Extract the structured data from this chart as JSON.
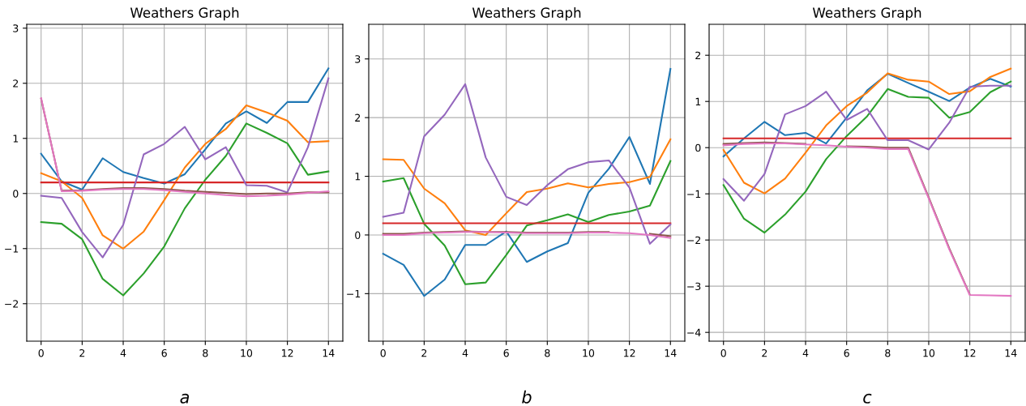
{
  "chart_data": [
    {
      "type": "line",
      "title": "Weathers Graph",
      "xlabel": "a",
      "x": [
        0,
        1,
        2,
        3,
        4,
        5,
        6,
        7,
        8,
        9,
        10,
        11,
        12,
        13,
        14
      ],
      "xlim": [
        -0.7,
        14.7
      ],
      "xticks": [
        0,
        2,
        4,
        6,
        8,
        10,
        12,
        14
      ],
      "ylim": [
        -2.68,
        3.07
      ],
      "yticks": [
        {
          "value": -2,
          "label": "−2"
        },
        {
          "value": -1,
          "label": "−1"
        },
        0,
        1,
        2,
        3
      ],
      "grid": true,
      "series": [
        {
          "color": "#1f77b4",
          "values": [
            0.72,
            0.22,
            0.07,
            0.64,
            0.39,
            0.28,
            0.18,
            0.35,
            0.8,
            1.27,
            1.49,
            1.28,
            1.66,
            1.66,
            2.27
          ]
        },
        {
          "color": "#ff7f0e",
          "values": [
            0.37,
            0.22,
            -0.08,
            -0.76,
            -1.0,
            -0.69,
            -0.12,
            0.47,
            0.9,
            1.17,
            1.6,
            1.47,
            1.32,
            0.93,
            0.95
          ]
        },
        {
          "color": "#2ca02c",
          "values": [
            -0.52,
            -0.55,
            -0.83,
            -1.55,
            -1.85,
            -1.45,
            -0.96,
            -0.27,
            0.25,
            0.68,
            1.27,
            1.1,
            0.91,
            0.34,
            0.4
          ]
        },
        {
          "color": "#d62728",
          "values": [
            0.2,
            0.2,
            0.2,
            0.2,
            0.2,
            0.2,
            0.2,
            0.2,
            0.2,
            0.2,
            0.2,
            0.2,
            0.2,
            0.2,
            0.2
          ]
        },
        {
          "color": "#9467bd",
          "values": [
            -0.04,
            -0.08,
            -0.7,
            -1.16,
            -0.57,
            0.71,
            0.9,
            1.21,
            0.62,
            0.84,
            0.15,
            0.14,
            0.02,
            0.84,
            2.09
          ]
        },
        {
          "color": "#8c564b",
          "values": [
            1.72,
            0.05,
            0.06,
            0.08,
            0.1,
            0.1,
            0.08,
            0.05,
            0.03,
            0.01,
            -0.01,
            0.0,
            0.0,
            0.02,
            0.02
          ]
        },
        {
          "color": "#e377c2",
          "values": [
            1.73,
            0.04,
            0.05,
            0.07,
            0.08,
            0.08,
            0.06,
            0.03,
            0.0,
            -0.03,
            -0.05,
            -0.04,
            -0.02,
            0.01,
            0.04
          ]
        }
      ]
    },
    {
      "type": "line",
      "title": "Weathers Graph",
      "xlabel": "b",
      "x": [
        0,
        1,
        2,
        3,
        4,
        5,
        6,
        7,
        8,
        9,
        10,
        11,
        12,
        13,
        14
      ],
      "xlim": [
        -0.7,
        14.7
      ],
      "xticks": [
        0,
        2,
        4,
        6,
        8,
        10,
        12,
        14
      ],
      "ylim": [
        -1.81,
        3.59
      ],
      "yticks": [
        {
          "value": -1,
          "label": "−1"
        },
        0,
        1,
        2,
        3
      ],
      "grid": true,
      "series": [
        {
          "color": "#1f77b4",
          "values": [
            -0.32,
            -0.51,
            -1.04,
            -0.76,
            -0.17,
            -0.17,
            0.06,
            -0.46,
            -0.28,
            -0.14,
            0.72,
            1.13,
            1.67,
            0.87,
            2.83
          ]
        },
        {
          "color": "#ff7f0e",
          "values": [
            1.29,
            1.28,
            0.79,
            0.54,
            0.08,
            0.0,
            0.37,
            0.73,
            0.79,
            0.88,
            0.81,
            0.87,
            0.9,
            0.99,
            1.63
          ]
        },
        {
          "color": "#2ca02c",
          "values": [
            0.91,
            0.97,
            0.19,
            -0.18,
            -0.84,
            -0.81,
            -0.34,
            0.16,
            0.25,
            0.35,
            0.22,
            0.34,
            0.4,
            0.5,
            1.26
          ]
        },
        {
          "color": "#d62728",
          "values": [
            0.2,
            0.2,
            0.2,
            0.2,
            0.2,
            0.2,
            0.2,
            0.2,
            0.2,
            0.2,
            0.2,
            0.2,
            0.2,
            0.2,
            0.2
          ]
        },
        {
          "color": "#9467bd",
          "values": [
            0.31,
            0.38,
            1.68,
            2.05,
            2.57,
            1.32,
            0.65,
            0.51,
            0.85,
            1.12,
            1.24,
            1.27,
            0.81,
            -0.15,
            0.18
          ]
        },
        {
          "color": "#8c564b",
          "values": [
            0.02,
            0.02,
            0.04,
            0.05,
            0.06,
            0.05,
            0.05,
            0.04,
            0.04,
            0.04,
            0.05,
            0.05,
            null,
            0.02,
            -0.02
          ]
        },
        {
          "color": "#e377c2",
          "values": [
            0.0,
            0.0,
            0.03,
            0.04,
            0.05,
            0.05,
            0.04,
            0.03,
            0.03,
            0.03,
            0.04,
            0.04,
            0.03,
            0.0,
            -0.05
          ]
        }
      ]
    },
    {
      "type": "line",
      "title": "Weathers Graph",
      "xlabel": "c",
      "x": [
        0,
        1,
        2,
        3,
        4,
        5,
        6,
        7,
        8,
        9,
        10,
        11,
        12,
        13,
        14
      ],
      "xlim": [
        -0.7,
        14.7
      ],
      "xticks": [
        0,
        2,
        4,
        6,
        8,
        10,
        12,
        14
      ],
      "ylim": [
        -4.19,
        2.67
      ],
      "yticks": [
        {
          "value": -4,
          "label": "−4"
        },
        {
          "value": -3,
          "label": "−3"
        },
        {
          "value": -2,
          "label": "−2"
        },
        {
          "value": -1,
          "label": "−1"
        },
        0,
        1,
        2
      ],
      "grid": true,
      "series": [
        {
          "color": "#1f77b4",
          "values": [
            -0.19,
            0.2,
            0.56,
            0.27,
            0.32,
            0.09,
            0.65,
            1.24,
            1.6,
            1.4,
            1.21,
            1.01,
            1.3,
            1.49,
            1.32
          ]
        },
        {
          "color": "#ff7f0e",
          "values": [
            -0.05,
            -0.76,
            -0.99,
            -0.67,
            -0.11,
            0.48,
            0.9,
            1.19,
            1.61,
            1.47,
            1.43,
            1.16,
            1.22,
            1.53,
            1.71
          ]
        },
        {
          "color": "#2ca02c",
          "values": [
            -0.81,
            -1.54,
            -1.84,
            -1.45,
            -0.95,
            -0.25,
            0.25,
            0.68,
            1.27,
            1.1,
            1.08,
            0.65,
            0.77,
            1.2,
            1.43
          ]
        },
        {
          "color": "#d62728",
          "values": [
            0.2,
            0.2,
            0.2,
            0.2,
            0.2,
            0.2,
            0.2,
            0.2,
            0.2,
            0.2,
            0.2,
            0.2,
            0.2,
            0.2,
            0.2
          ]
        },
        {
          "color": "#9467bd",
          "values": [
            -0.68,
            -1.15,
            -0.57,
            0.72,
            0.9,
            1.21,
            0.6,
            0.84,
            0.16,
            0.16,
            -0.04,
            0.54,
            1.32,
            1.34,
            1.34
          ]
        },
        {
          "color": "#8c564b",
          "values": [
            0.08,
            0.1,
            0.11,
            0.1,
            0.08,
            null,
            0.03,
            0.02,
            0.0,
            0.0,
            -1.08,
            -2.18,
            -3.18,
            null,
            null
          ]
        },
        {
          "color": "#e377c2",
          "values": [
            0.05,
            0.08,
            0.09,
            0.09,
            0.07,
            0.05,
            0.02,
            0.0,
            -0.03,
            -0.03,
            -1.1,
            -2.2,
            -3.19,
            -3.2,
            -3.21
          ]
        }
      ]
    }
  ]
}
